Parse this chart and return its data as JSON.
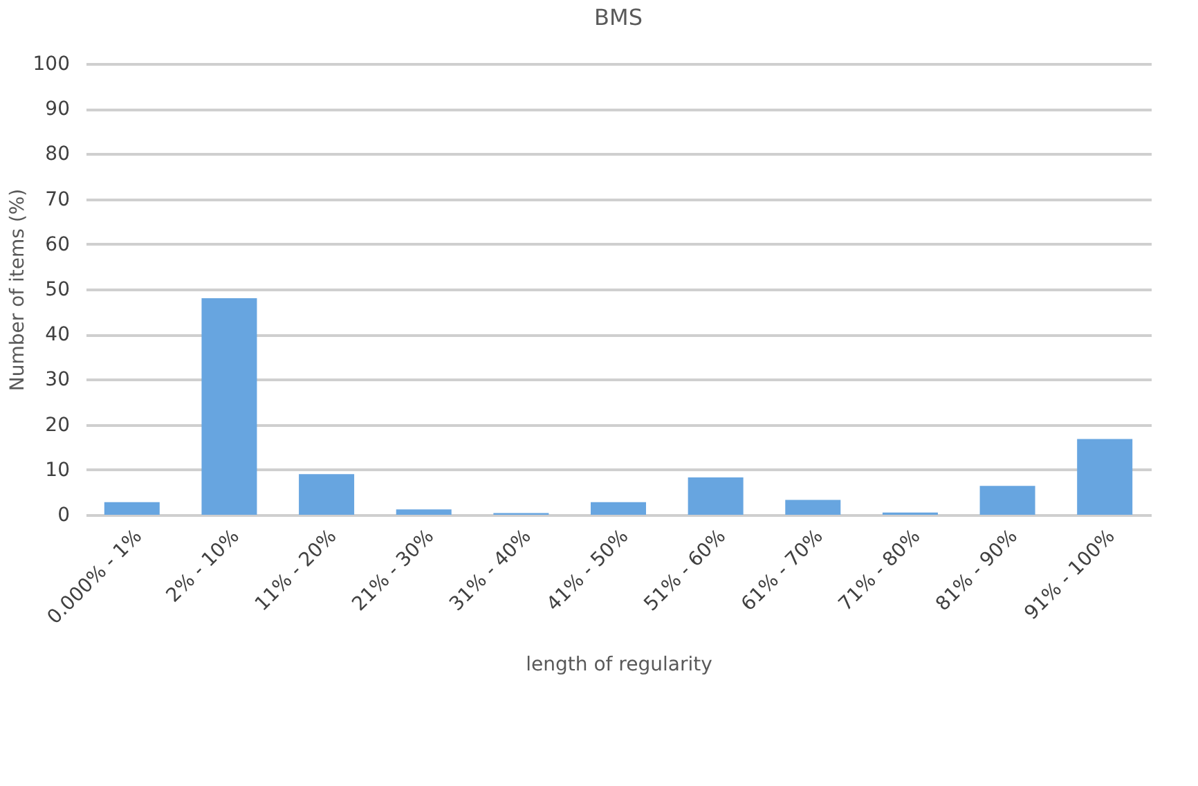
{
  "chart_data": {
    "type": "bar",
    "title": "BMS",
    "xlabel": "length of regularity",
    "ylabel": "Number of items (%)",
    "categories": [
      "0.000% - 1%",
      "2% - 10%",
      "11% - 20%",
      "21% - 30%",
      "31% - 40%",
      "41% - 50%",
      "51% - 60%",
      "61% - 70%",
      "71% - 80%",
      "81% - 90%",
      "91% - 100%"
    ],
    "values": [
      2.8,
      48,
      9,
      1.2,
      0.4,
      2.8,
      8.3,
      3.3,
      0.5,
      6.4,
      16.8
    ],
    "color": "#67a5e0",
    "ylim": [
      0,
      100
    ],
    "yticks": [
      0,
      10,
      20,
      30,
      40,
      50,
      60,
      70,
      80,
      90,
      100
    ],
    "grid": "y"
  }
}
